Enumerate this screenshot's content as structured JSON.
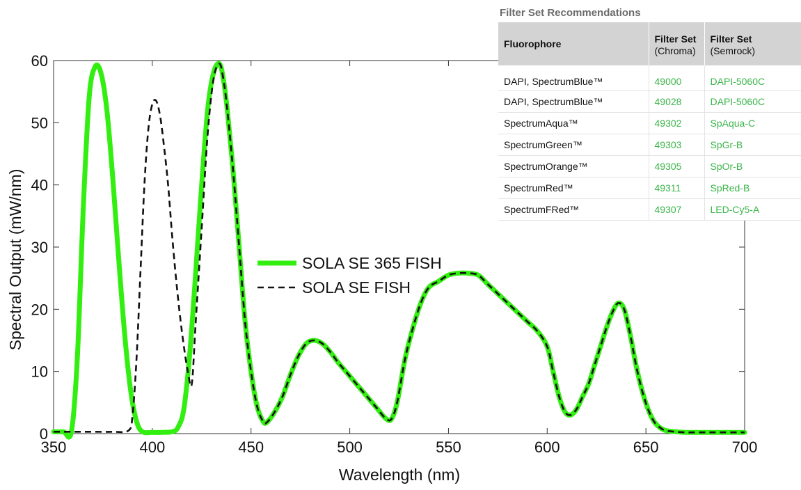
{
  "chart_data": {
    "type": "line",
    "title": "",
    "xlabel": "Wavelength (nm)",
    "ylabel": "Spectral Output (mW/nm)",
    "xlim": [
      350,
      700
    ],
    "ylim": [
      0,
      60
    ],
    "xticks": [
      350,
      400,
      450,
      500,
      550,
      600,
      650,
      700
    ],
    "yticks": [
      0,
      10,
      20,
      30,
      40,
      50,
      60
    ],
    "grid": false,
    "legend_position": "center",
    "series": [
      {
        "name": "SOLA SE 365 FISH",
        "color": "#33ee11",
        "style": "solid",
        "x": [
          350,
          355,
          359,
          362,
          365,
          368,
          371,
          374,
          377,
          380,
          383,
          386,
          389,
          392,
          395,
          400,
          405,
          410,
          413,
          416,
          419,
          422,
          425,
          428,
          431,
          434,
          436,
          438,
          441,
          444,
          447,
          450,
          453,
          456,
          458,
          462,
          466,
          470,
          474,
          478,
          482,
          486,
          490,
          494,
          498,
          502,
          506,
          510,
          514,
          518,
          521,
          524,
          528,
          532,
          536,
          540,
          545,
          550,
          555,
          560,
          565,
          570,
          575,
          580,
          585,
          590,
          595,
          600,
          603,
          606,
          609,
          612,
          615,
          618,
          621,
          624,
          627,
          630,
          633,
          636,
          639,
          642,
          645,
          648,
          651,
          654,
          657,
          660,
          665,
          670,
          675,
          680,
          690,
          700
        ],
        "y": [
          0.3,
          0.3,
          0.3,
          12,
          36,
          54,
          59,
          58,
          52,
          41,
          28,
          16,
          7,
          2,
          0.3,
          0.2,
          0.2,
          0.3,
          1,
          4,
          13,
          26,
          40,
          52,
          58,
          59.5,
          57,
          52,
          42,
          30,
          18,
          10,
          4.5,
          2,
          1.8,
          3.5,
          6,
          9.5,
          12.5,
          14.5,
          15,
          14.5,
          13.2,
          11.5,
          10,
          8.5,
          7,
          5.5,
          4,
          2.5,
          2.3,
          5,
          12,
          17,
          21,
          23.5,
          24.5,
          25.5,
          25.8,
          25.8,
          25.5,
          24,
          22.5,
          21,
          19.5,
          18,
          16.5,
          14,
          10,
          6,
          3.5,
          3,
          4,
          6,
          8,
          11,
          14,
          17,
          19.5,
          21,
          20,
          16,
          11,
          7,
          4,
          2,
          1,
          0.5,
          0.3,
          0.2,
          0.2,
          0.2,
          0.2,
          0.2
        ]
      },
      {
        "name": "SOLA SE FISH",
        "color": "#111111",
        "style": "dashed",
        "x": [
          350,
          360,
          370,
          380,
          388,
          390,
          392,
          394,
          396,
          398,
          400,
          402,
          404,
          406,
          408,
          410,
          412,
          414,
          416,
          418,
          420,
          422,
          425,
          428,
          431,
          434,
          436,
          438,
          441,
          444,
          447,
          450,
          453,
          456,
          458,
          462,
          466,
          470,
          474,
          478,
          482,
          486,
          490,
          494,
          498,
          502,
          506,
          510,
          514,
          518,
          521,
          524,
          528,
          532,
          536,
          540,
          545,
          550,
          555,
          560,
          565,
          570,
          575,
          580,
          585,
          590,
          595,
          600,
          603,
          606,
          609,
          612,
          615,
          618,
          621,
          624,
          627,
          630,
          633,
          636,
          639,
          642,
          645,
          648,
          651,
          654,
          657,
          660,
          665,
          670,
          675,
          680,
          690,
          700
        ],
        "y": [
          0.3,
          0.3,
          0.3,
          0.3,
          0.5,
          3,
          12,
          26,
          40,
          49,
          53,
          53.5,
          51,
          46,
          40,
          32,
          25,
          19,
          14,
          10,
          8,
          18,
          33,
          48,
          57,
          59.5,
          57,
          52,
          42,
          30,
          18,
          10,
          4.5,
          2,
          1.8,
          3.5,
          6,
          9.5,
          12.5,
          14.5,
          15,
          14.5,
          13.2,
          11.5,
          10,
          8.5,
          7,
          5.5,
          4,
          2.5,
          2.3,
          5,
          12,
          17,
          21,
          23.5,
          24.5,
          25.5,
          25.8,
          25.8,
          25.5,
          24,
          22.5,
          21,
          19.5,
          18,
          16.5,
          14,
          10,
          6,
          3.5,
          3,
          4,
          6,
          8,
          11,
          14,
          17,
          19.5,
          21,
          20,
          16,
          11,
          7,
          4,
          2,
          1,
          0.5,
          0.3,
          0.2,
          0.2,
          0.2,
          0.2,
          0.2
        ]
      }
    ]
  },
  "filter_table": {
    "title": "Filter Set Recommendations",
    "headers": {
      "fluorophore": "Fluorophore",
      "chroma_main": "Filter Set",
      "chroma_sub": "(Chroma)",
      "semrock_main": "Filter Set",
      "semrock_sub": "(Semrock)"
    },
    "link_color": "#3bb54a",
    "rows": [
      {
        "fluorophore": "DAPI, SpectrumBlue™",
        "chroma": "49000",
        "semrock": "DAPI-5060C"
      },
      {
        "fluorophore": "DAPI, SpectrumBlue™",
        "chroma": "49028",
        "semrock": "DAPI-5060C"
      },
      {
        "fluorophore": "SpectrumAqua™",
        "chroma": "49302",
        "semrock": "SpAqua-C"
      },
      {
        "fluorophore": "SpectrumGreen™",
        "chroma": "49303",
        "semrock": "SpGr-B"
      },
      {
        "fluorophore": "SpectrumOrange™",
        "chroma": "49305",
        "semrock": "SpOr-B"
      },
      {
        "fluorophore": "SpectrumRed™",
        "chroma": "49311",
        "semrock": "SpRed-B"
      },
      {
        "fluorophore": "SpectrumFRed™",
        "chroma": "49307",
        "semrock": "LED-Cy5-A"
      }
    ]
  }
}
